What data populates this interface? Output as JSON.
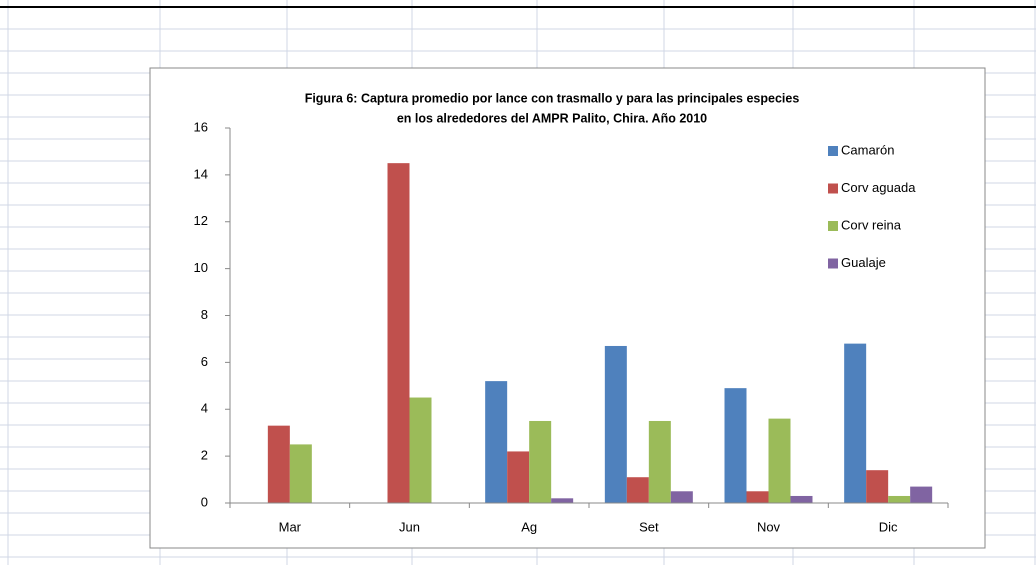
{
  "chart_data": {
    "type": "bar",
    "title": [
      "Figura 6: Captura promedio por lance con trasmallo y para las principales especies",
      "en los alrededores del AMPR  Palito, Chira. Año 2010"
    ],
    "categories": [
      "Mar",
      "Jun",
      "Ag",
      "Set",
      "Nov",
      "Dic"
    ],
    "series": [
      {
        "name": "Camarón",
        "color": "#4f81bd",
        "values": [
          null,
          null,
          5.2,
          6.7,
          4.9,
          6.8
        ]
      },
      {
        "name": "Corv aguada",
        "color": "#c0504d",
        "values": [
          3.3,
          14.5,
          2.2,
          1.1,
          0.5,
          1.4
        ]
      },
      {
        "name": "Corv reina",
        "color": "#9bbb59",
        "values": [
          2.5,
          4.5,
          3.5,
          3.5,
          3.6,
          0.3
        ]
      },
      {
        "name": "Gualaje",
        "color": "#8064a2",
        "values": [
          null,
          null,
          0.2,
          0.5,
          0.3,
          0.7
        ]
      }
    ],
    "ylim": [
      0,
      16
    ],
    "yticks": [
      0,
      2,
      4,
      6,
      8,
      10,
      12,
      14,
      16
    ],
    "grid": false,
    "legend": "right"
  }
}
